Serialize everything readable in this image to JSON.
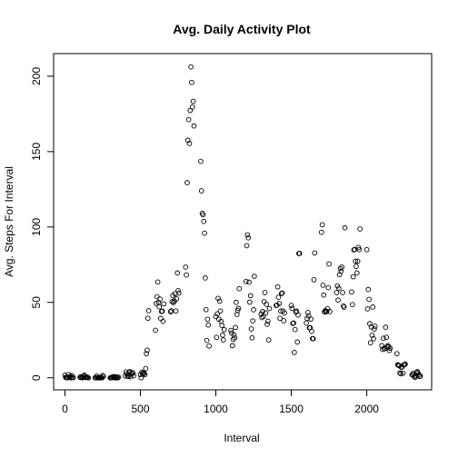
{
  "chart_data": {
    "type": "scatter",
    "title": "Avg. Daily Activity Plot",
    "xlabel": "Interval",
    "ylabel": "Avg. Steps For Interval",
    "xlim": [
      -75,
      2430
    ],
    "ylim": [
      -8,
      215
    ],
    "xticks": [
      0,
      500,
      1000,
      1500,
      2000
    ],
    "yticks": [
      0,
      50,
      100,
      150,
      200
    ],
    "grid": false,
    "box": true,
    "series": [
      {
        "x": [
          0,
          5,
          10,
          15,
          20,
          25,
          30,
          35,
          40,
          45,
          50,
          55,
          100,
          105,
          110,
          115,
          120,
          125,
          130,
          135,
          140,
          145,
          150,
          155,
          200,
          205,
          210,
          215,
          220,
          225,
          230,
          235,
          240,
          245,
          250,
          255,
          300,
          305,
          310,
          315,
          320,
          325,
          330,
          335,
          340,
          345,
          350,
          355,
          400,
          405,
          410,
          415,
          420,
          425,
          430,
          435,
          440,
          445,
          450,
          455,
          500,
          505,
          510,
          515,
          520,
          525,
          530,
          535,
          540,
          545,
          550,
          555,
          600,
          605,
          610,
          615,
          620,
          625,
          630,
          635,
          640,
          645,
          650,
          655,
          700,
          705,
          710,
          715,
          720,
          725,
          730,
          735,
          740,
          745,
          750,
          755,
          800,
          805,
          810,
          815,
          820,
          825,
          830,
          835,
          840,
          845,
          850,
          855,
          900,
          905,
          910,
          915,
          920,
          925,
          930,
          935,
          940,
          945,
          950,
          955,
          1000,
          1005,
          1010,
          1015,
          1020,
          1025,
          1030,
          1035,
          1040,
          1045,
          1050,
          1055,
          1100,
          1105,
          1110,
          1115,
          1120,
          1125,
          1130,
          1135,
          1140,
          1145,
          1150,
          1155,
          1200,
          1205,
          1210,
          1215,
          1220,
          1225,
          1230,
          1235,
          1240,
          1245,
          1250,
          1255,
          1300,
          1305,
          1310,
          1315,
          1320,
          1325,
          1330,
          1335,
          1340,
          1345,
          1350,
          1355,
          1400,
          1405,
          1410,
          1415,
          1420,
          1425,
          1430,
          1435,
          1440,
          1445,
          1450,
          1455,
          1500,
          1505,
          1510,
          1515,
          1520,
          1525,
          1530,
          1535,
          1540,
          1545,
          1550,
          1555,
          1600,
          1605,
          1610,
          1615,
          1620,
          1625,
          1630,
          1635,
          1640,
          1645,
          1650,
          1655,
          1700,
          1705,
          1710,
          1715,
          1720,
          1725,
          1730,
          1735,
          1740,
          1745,
          1750,
          1755,
          1800,
          1805,
          1810,
          1815,
          1820,
          1825,
          1830,
          1835,
          1840,
          1845,
          1850,
          1855,
          1900,
          1905,
          1910,
          1915,
          1920,
          1925,
          1930,
          1935,
          1940,
          1945,
          1950,
          1955,
          2000,
          2005,
          2010,
          2015,
          2020,
          2025,
          2030,
          2035,
          2040,
          2045,
          2050,
          2055,
          2100,
          2105,
          2110,
          2115,
          2120,
          2125,
          2130,
          2135,
          2140,
          2145,
          2150,
          2155,
          2200,
          2205,
          2210,
          2215,
          2220,
          2225,
          2230,
          2235,
          2240,
          2245,
          2250,
          2255,
          2300,
          2305,
          2310,
          2315,
          2320,
          2325,
          2330,
          2335,
          2340,
          2345,
          2350,
          2355
        ],
        "y": [
          1.7,
          0.3,
          0.1,
          0.2,
          0.1,
          2.1,
          0.5,
          0.9,
          0,
          1.5,
          0.3,
          0.1,
          0.3,
          0.7,
          0.2,
          0,
          0.4,
          1.1,
          1.8,
          0.2,
          0.2,
          0.4,
          0.3,
          0,
          0,
          0,
          1.1,
          0,
          0,
          0.1,
          0,
          0.3,
          0,
          0,
          1.5,
          0.9,
          0,
          0,
          0,
          0.5,
          0.5,
          0.8,
          0,
          0,
          0.5,
          0.1,
          0,
          0.4,
          1.2,
          3.9,
          2.6,
          1.1,
          0.8,
          3.6,
          4.1,
          0.7,
          2.5,
          3.5,
          3.1,
          1.3,
          2.1,
          0,
          3.7,
          2.5,
          3.3,
          2.9,
          2.1,
          6.1,
          16.0,
          18.3,
          39.5,
          44.5,
          31.5,
          49.3,
          53.8,
          63.5,
          50.0,
          47.1,
          52.2,
          39.3,
          44.0,
          44.2,
          37.4,
          49.0,
          43.8,
          44.4,
          50.5,
          54.5,
          49.9,
          50.9,
          55.7,
          44.3,
          52.3,
          69.5,
          57.8,
          56.2,
          73.4,
          68.2,
          129.4,
          157.5,
          171.2,
          155.4,
          177.3,
          206.2,
          195.9,
          179.6,
          183.4,
          167.0,
          143.5,
          124.0,
          109.1,
          108.1,
          103.7,
          95.9,
          66.2,
          45.2,
          24.8,
          38.8,
          34.98,
          21.1,
          40.6,
          26.8,
          42.4,
          52.7,
          38.9,
          50.8,
          44.3,
          37.4,
          34.7,
          28.3,
          25.1,
          31.9,
          31.4,
          29.7,
          21.3,
          25.5,
          28.4,
          26.5,
          33.4,
          50.0,
          42.0,
          44.7,
          46.0,
          59.1,
          63.9,
          87.6,
          94.8,
          92.8,
          63.4,
          50.2,
          54.5,
          32.4,
          26.5,
          37.7,
          45.1,
          67.3,
          42.3,
          39.9,
          43.9,
          40.7,
          50.5,
          56.5,
          43.0,
          48.7,
          35.5,
          37.5,
          25.1,
          45.9,
          48.0,
          48.2,
          60.3,
          53.4,
          49.3,
          39.5,
          44.2,
          55.9,
          56.2,
          44.3,
          37.8,
          43.0,
          48.0,
          46.0,
          36.0,
          36.3,
          16.8,
          32.0,
          43.6,
          44.2,
          23.7,
          41.6,
          82.4,
          82.5,
          36.3,
          39.4,
          43.3,
          41.0,
          33.1,
          33.2,
          38.9,
          30.8,
          26.0,
          25.9,
          65.0,
          82.8,
          96.5,
          101.5,
          61.4,
          54.9,
          43.7,
          44.5,
          43.8,
          44.0,
          45.8,
          59.8,
          75.5,
          43.9,
          56.5,
          60.9,
          51.5,
          59.4,
          68.4,
          72.5,
          70.6,
          73.4,
          56.5,
          47.6,
          46.8,
          99.5,
          56.9,
          48.5,
          67.0,
          84.8,
          85.1,
          77.3,
          73.9,
          69.5,
          77.3,
          86.4,
          85.0,
          98.7,
          85.0,
          45.7,
          58.5,
          52.0,
          35.9,
          23.2,
          33.7,
          28.2,
          46.9,
          26.0,
          32.4,
          34.2,
          21.3,
          18.8,
          26.2,
          19.5,
          19.3,
          33.5,
          26.8,
          20.6,
          21.3,
          20.4,
          18.1,
          19.6,
          16.0,
          8.7,
          8.3,
          8.0,
          3.2,
          2.6,
          6.9,
          7.2,
          3.0,
          8.5,
          8.7,
          9.1,
          2.0,
          1.8,
          3.1,
          0.8,
          0.2,
          1.3,
          3.6,
          4.1,
          3.0,
          1.9,
          0.9,
          1.1
        ]
      }
    ]
  }
}
